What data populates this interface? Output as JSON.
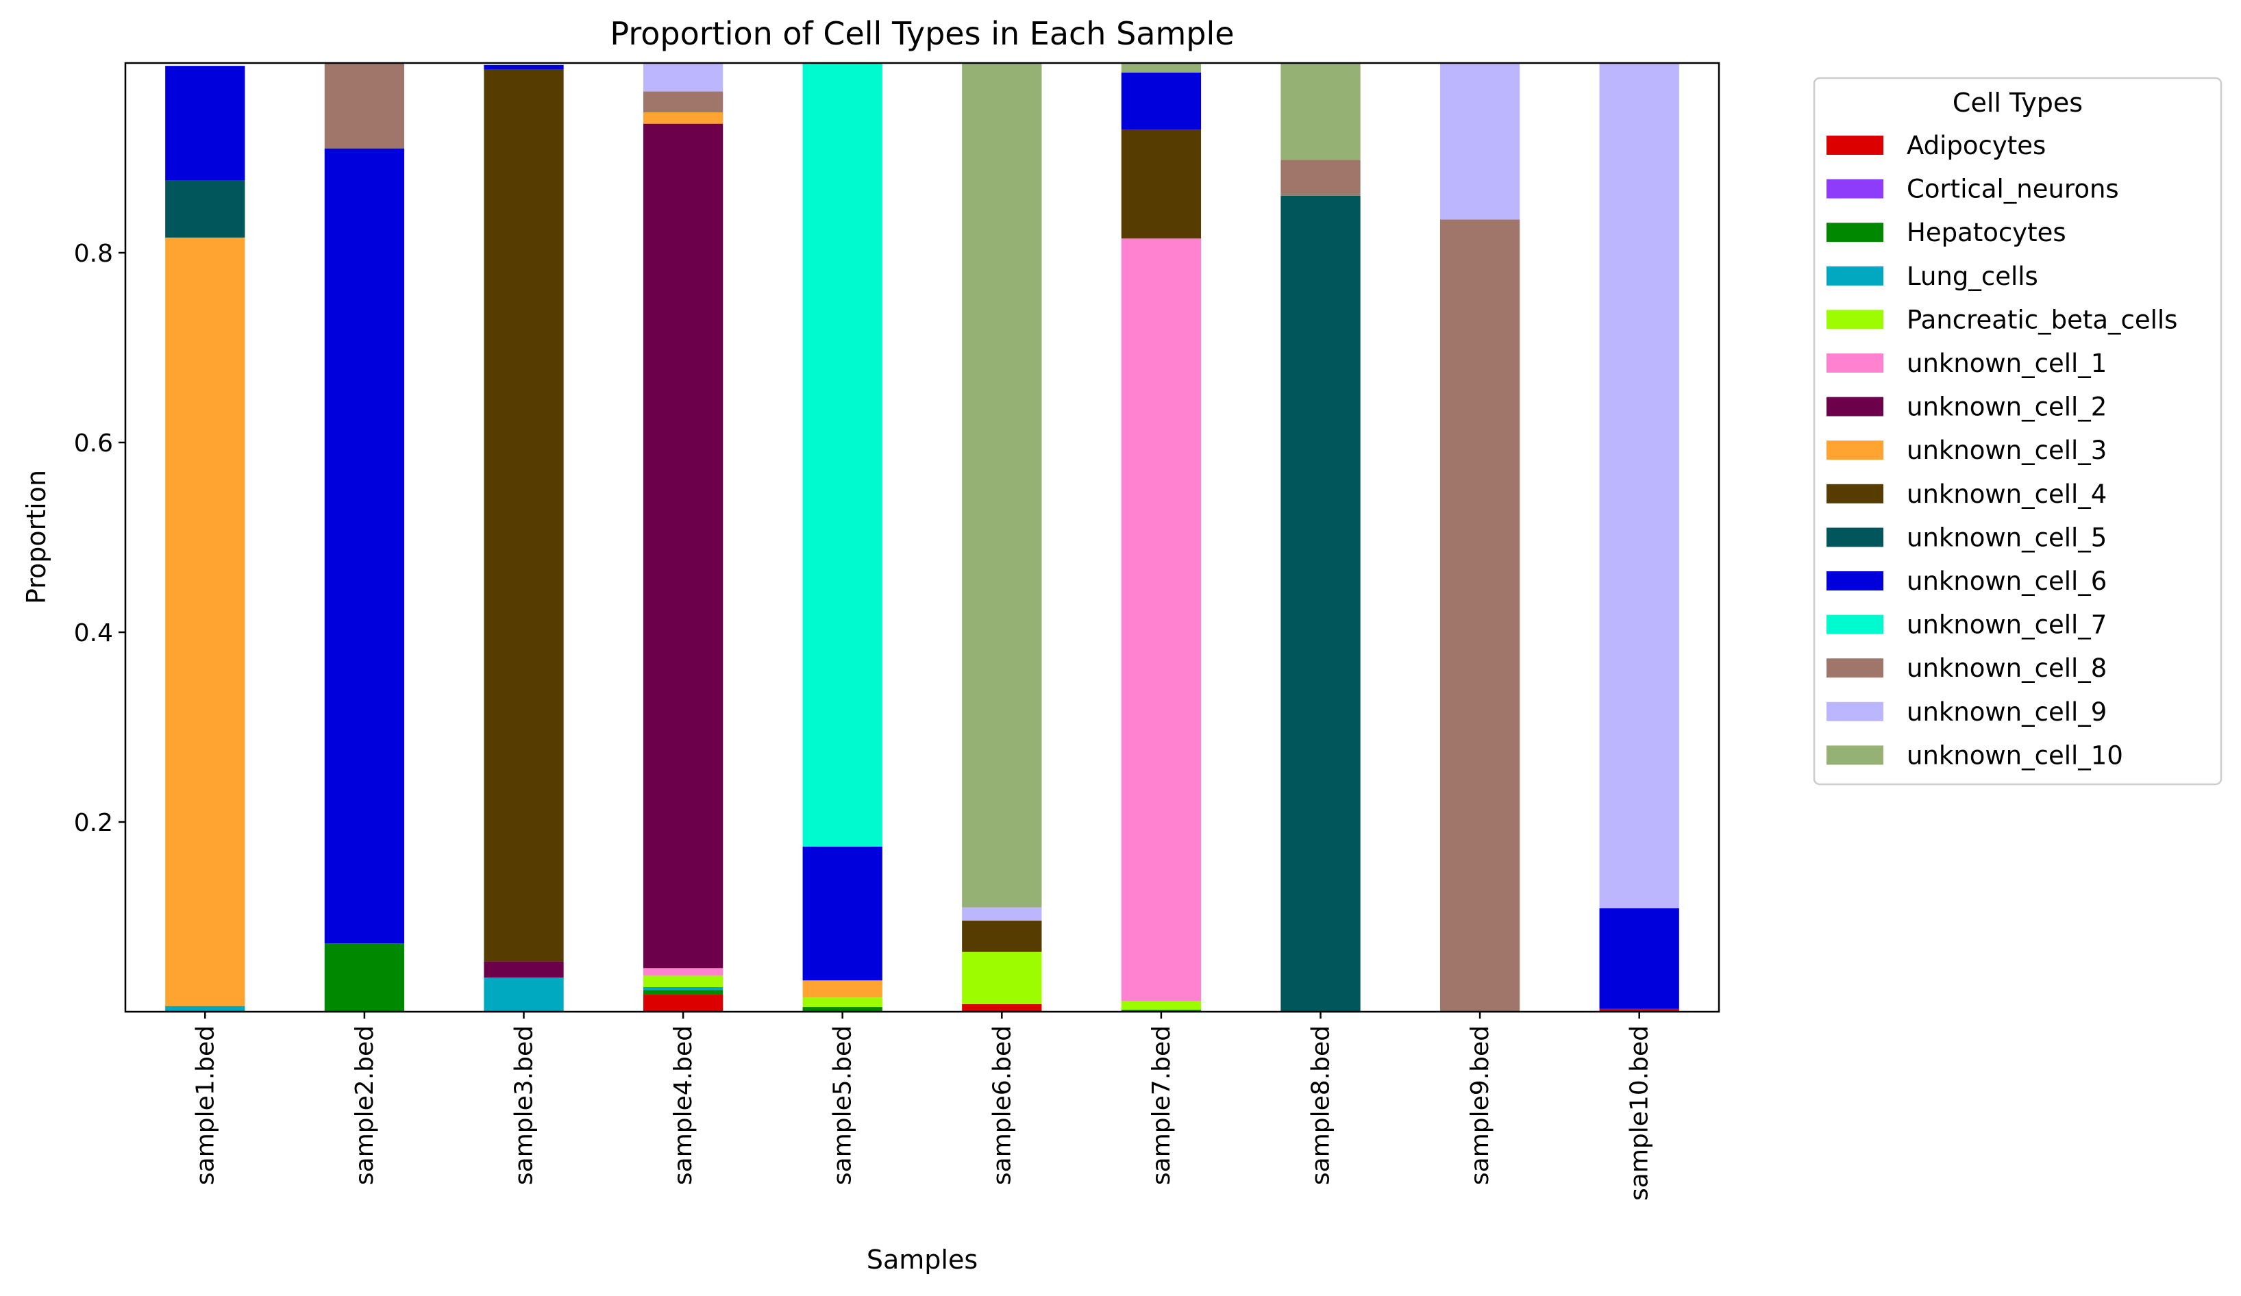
{
  "chart_data": {
    "type": "bar",
    "stacked": true,
    "title": "Proportion of Cell Types in Each Sample",
    "xlabel": "Samples",
    "ylabel": "Proportion",
    "ylim": [
      0,
      1.0
    ],
    "yticks": [
      0.2,
      0.4,
      0.6,
      0.8
    ],
    "ytick_labels": [
      "0.2",
      "0.4",
      "0.6",
      "0.8"
    ],
    "grid": false,
    "legend": {
      "title": "Cell Types",
      "placement": "outside-right"
    },
    "categories": [
      "sample1.bed",
      "sample2.bed",
      "sample3.bed",
      "sample4.bed",
      "sample5.bed",
      "sample6.bed",
      "sample7.bed",
      "sample8.bed",
      "sample9.bed",
      "sample10.bed"
    ],
    "series": [
      {
        "name": "Adipocytes",
        "color": "#dd0000",
        "values": [
          0,
          0,
          0,
          0.018,
          0,
          0.008,
          0,
          0,
          0,
          0.003
        ]
      },
      {
        "name": "Cortical_neurons",
        "color": "#8e3cfa",
        "values": [
          0,
          0,
          0,
          0,
          0,
          0,
          0,
          0,
          0,
          0
        ]
      },
      {
        "name": "Hepatocytes",
        "color": "#008800",
        "values": [
          0,
          0.072,
          0,
          0.005,
          0.005,
          0,
          0.002,
          0,
          0,
          0
        ]
      },
      {
        "name": "Lung_cells",
        "color": "#00a8c0",
        "values": [
          0.006,
          0,
          0.036,
          0.003,
          0,
          0,
          0,
          0,
          0,
          0
        ]
      },
      {
        "name": "Pancreatic_beta_cells",
        "color": "#9efc00",
        "values": [
          0,
          0,
          0,
          0.012,
          0.01,
          0.055,
          0.009,
          0,
          0,
          0
        ]
      },
      {
        "name": "unknown_cell_1",
        "color": "#ff82d0",
        "values": [
          0,
          0,
          0,
          0.008,
          0,
          0,
          0.804,
          0,
          0,
          0
        ]
      },
      {
        "name": "unknown_cell_2",
        "color": "#6c004a",
        "values": [
          0,
          0,
          0.017,
          0.89,
          0,
          0,
          0,
          0,
          0,
          0
        ]
      },
      {
        "name": "unknown_cell_3",
        "color": "#ffa431",
        "values": [
          0.81,
          0,
          0,
          0.012,
          0.018,
          0,
          0,
          0,
          0,
          0
        ]
      },
      {
        "name": "unknown_cell_4",
        "color": "#573c00",
        "values": [
          0,
          0,
          0.94,
          0,
          0,
          0.033,
          0.115,
          0,
          0,
          0
        ]
      },
      {
        "name": "unknown_cell_5",
        "color": "#00565b",
        "values": [
          0.06,
          0,
          0,
          0,
          0,
          0,
          0,
          0.86,
          0,
          0
        ]
      },
      {
        "name": "unknown_cell_6",
        "color": "#0000dd",
        "values": [
          0.121,
          0.838,
          0.005,
          0,
          0.141,
          0,
          0.06,
          0,
          0,
          0.106
        ]
      },
      {
        "name": "unknown_cell_7",
        "color": "#00fad0",
        "values": [
          0,
          0,
          0,
          0,
          0.826,
          0,
          0,
          0,
          0,
          0
        ]
      },
      {
        "name": "unknown_cell_8",
        "color": "#a0766a",
        "values": [
          0,
          0.09,
          0,
          0.022,
          0,
          0,
          0,
          0.038,
          0.835,
          0
        ]
      },
      {
        "name": "unknown_cell_9",
        "color": "#bcb6ff",
        "values": [
          0,
          0,
          0,
          0.03,
          0,
          0.014,
          0,
          0,
          0.165,
          0.891
        ]
      },
      {
        "name": "unknown_cell_10",
        "color": "#95b274",
        "values": [
          0,
          0,
          0,
          0,
          0,
          0.89,
          0.01,
          0.102,
          0,
          0
        ]
      }
    ]
  }
}
